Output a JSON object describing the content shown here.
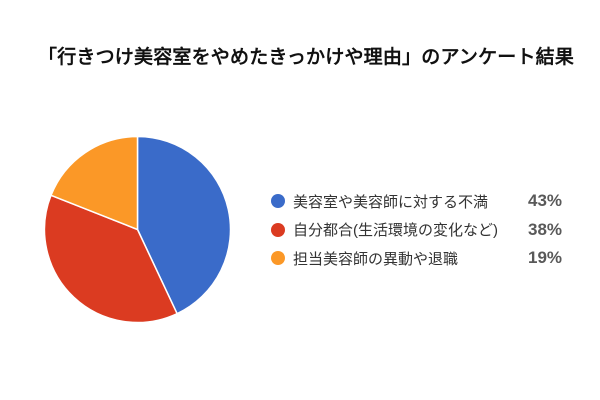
{
  "page": {
    "background_color": "#ffffff",
    "title": "「行きつけ美容室をやめたきっかけや理由」のアンケート結果"
  },
  "chart_data": {
    "type": "pie",
    "title": "「行きつけ美容室をやめたきっかけや理由」のアンケート結果",
    "labels": [
      "美容室や美容師に対する不満",
      "自分都合(生活環境の変化など)",
      "担当美容師の異動や退職"
    ],
    "values": [
      43,
      38,
      19
    ],
    "unit": "%",
    "colors": [
      "#3a6bc9",
      "#db3b21",
      "#fb9827"
    ],
    "slice_border_color": "#ffffff",
    "start_angle_deg": 0,
    "direction": "clockwise",
    "legend_position": "right"
  },
  "legend": {
    "items": [
      {
        "label": "美容室や美容師に対する不満",
        "pct": "43%",
        "color": "#3a6bc9"
      },
      {
        "label": "自分都合(生活環境の変化など)",
        "pct": "38%",
        "color": "#db3b21"
      },
      {
        "label": "担当美容師の異動や退職",
        "pct": "19%",
        "color": "#fb9827"
      }
    ]
  }
}
